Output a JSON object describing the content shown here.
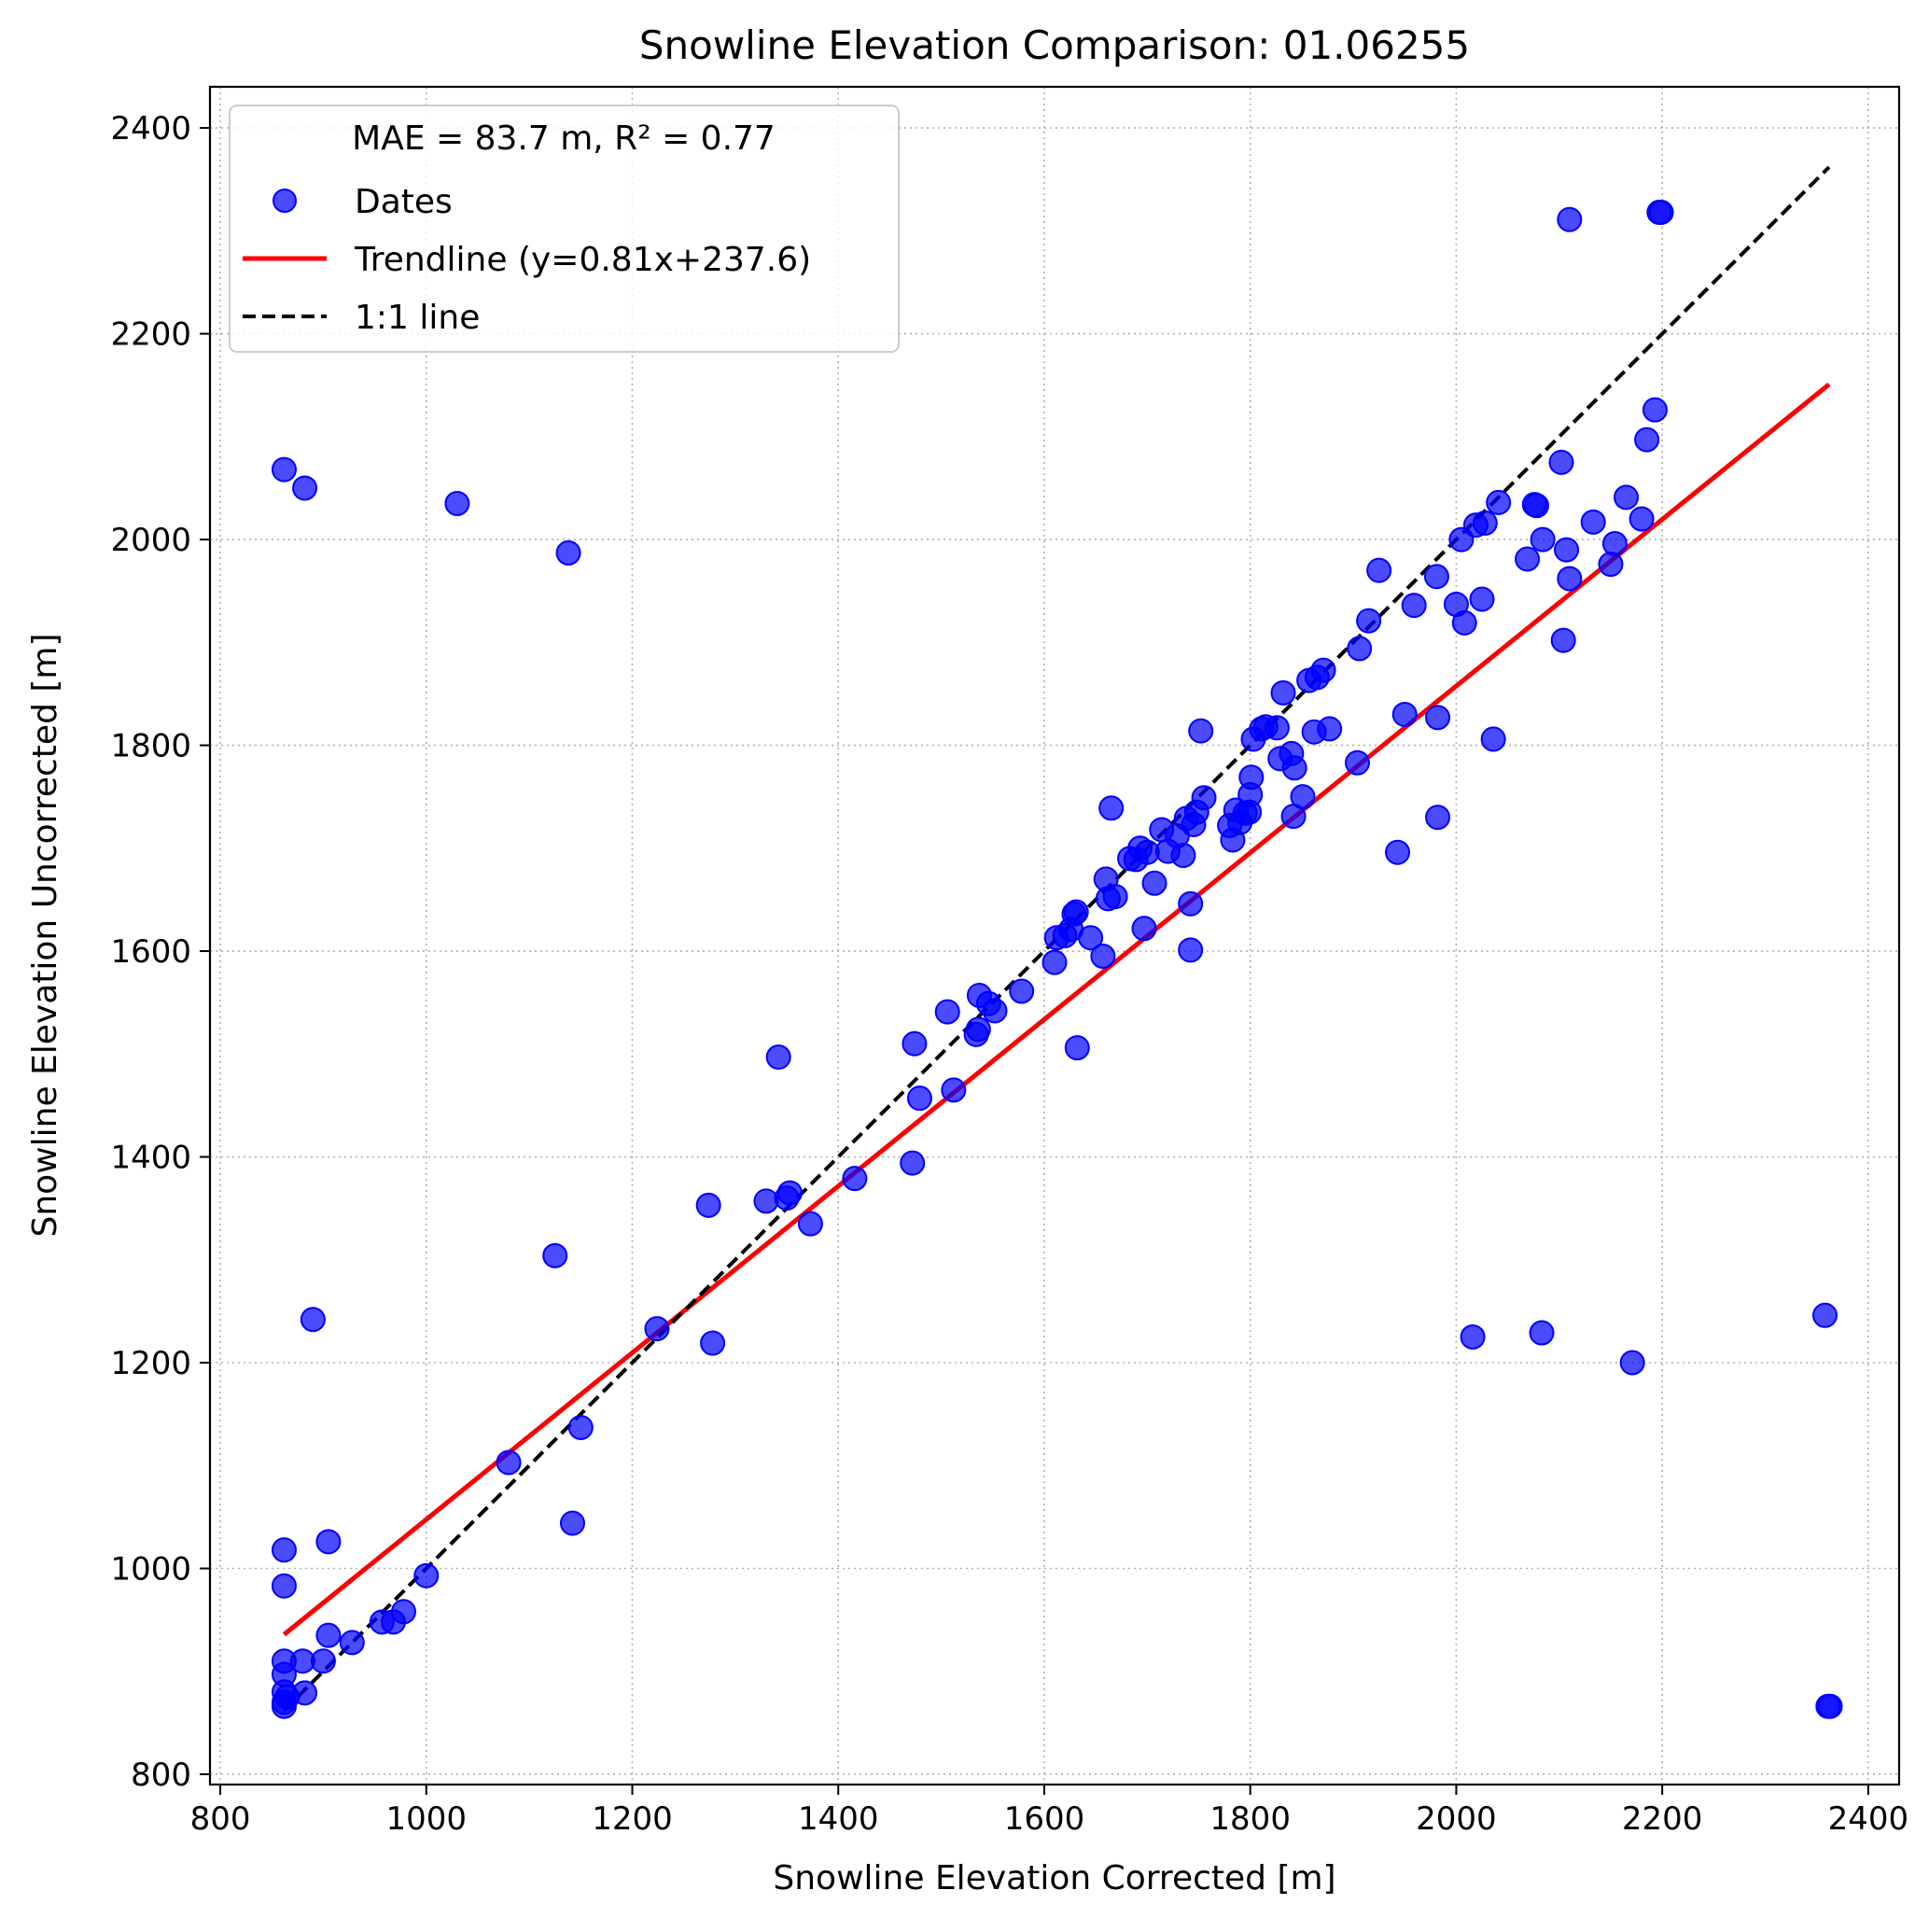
{
  "chart_data": {
    "type": "scatter",
    "title": "Snowline Elevation Comparison: 01.06255",
    "xlabel": "Snowline Elevation Corrected [m]",
    "ylabel": "Snowline Elevation Uncorrected [m]",
    "xlim": [
      790,
      2430
    ],
    "ylim": [
      790,
      2440
    ],
    "xticks": [
      800,
      1000,
      1200,
      1400,
      1600,
      1800,
      2000,
      2200,
      2400
    ],
    "yticks": [
      800,
      1000,
      1200,
      1400,
      1600,
      1800,
      2000,
      2200,
      2400
    ],
    "grid": true,
    "legend": {
      "position": "top-left",
      "title": "MAE = 83.7 m,  R² = 0.77",
      "entries": [
        "Dates",
        "Trendline (y=0.81x+237.6)",
        "1:1 line"
      ]
    },
    "colors": {
      "points": "#0000ff",
      "trendline": "#ff0000",
      "one_to_one": "#000000",
      "grid": "#b0b0b0"
    },
    "trendline": {
      "slope": 0.81,
      "intercept": 237.6,
      "x_range": [
        862,
        2362
      ]
    },
    "one_to_one": {
      "x_range": [
        862,
        2362
      ]
    },
    "series": [
      {
        "name": "Dates",
        "points": [
          [
            862,
            2068
          ],
          [
            882,
            2050
          ],
          [
            1030,
            2035
          ],
          [
            1138,
            1987
          ],
          [
            862,
            1018
          ],
          [
            862,
            983
          ],
          [
            905,
            1026
          ],
          [
            862,
            910
          ],
          [
            862,
            897
          ],
          [
            880,
            910
          ],
          [
            862,
            880
          ],
          [
            862,
            870
          ],
          [
            862,
            866
          ],
          [
            865,
            875
          ],
          [
            882,
            879
          ],
          [
            900,
            910
          ],
          [
            905,
            935
          ],
          [
            928,
            928
          ],
          [
            957,
            948
          ],
          [
            968,
            948
          ],
          [
            978,
            958
          ],
          [
            1000,
            993
          ],
          [
            890,
            1242
          ],
          [
            1080,
            1103
          ],
          [
            1125,
            1304
          ],
          [
            1150,
            1137
          ],
          [
            1142,
            1044
          ],
          [
            1224,
            1233
          ],
          [
            1274,
            1353
          ],
          [
            1278,
            1219
          ],
          [
            1330,
            1357
          ],
          [
            1342,
            1497
          ],
          [
            1350,
            1360
          ],
          [
            1353,
            1365
          ],
          [
            1373,
            1335
          ],
          [
            1416,
            1379
          ],
          [
            1472,
            1394
          ],
          [
            1474,
            1510
          ],
          [
            1479,
            1457
          ],
          [
            1506,
            1541
          ],
          [
            1512,
            1465
          ],
          [
            1534,
            1519
          ],
          [
            1536,
            1524
          ],
          [
            1537,
            1557
          ],
          [
            1546,
            1549
          ],
          [
            1552,
            1542
          ],
          [
            1578,
            1561
          ],
          [
            1610,
            1589
          ],
          [
            1612,
            1613
          ],
          [
            1620,
            1615
          ],
          [
            1626,
            1621
          ],
          [
            1629,
            1636
          ],
          [
            1631,
            1638
          ],
          [
            1632,
            1506
          ],
          [
            1645,
            1613
          ],
          [
            1657,
            1595
          ],
          [
            1660,
            1670
          ],
          [
            1662,
            1651
          ],
          [
            1665,
            1739
          ],
          [
            1669,
            1653
          ],
          [
            1683,
            1690
          ],
          [
            1689,
            1689
          ],
          [
            1693,
            1700
          ],
          [
            1697,
            1622
          ],
          [
            1700,
            1696
          ],
          [
            1707,
            1666
          ],
          [
            1714,
            1718
          ],
          [
            1720,
            1697
          ],
          [
            1729,
            1712
          ],
          [
            1735,
            1693
          ],
          [
            1738,
            1729
          ],
          [
            1742,
            1646
          ],
          [
            1742,
            1601
          ],
          [
            1745,
            1723
          ],
          [
            1748,
            1735
          ],
          [
            1752,
            1814
          ],
          [
            1755,
            1749
          ],
          [
            1780,
            1722
          ],
          [
            1783,
            1708
          ],
          [
            1786,
            1737
          ],
          [
            1790,
            1725
          ],
          [
            1795,
            1734
          ],
          [
            1799,
            1735
          ],
          [
            1800,
            1752
          ],
          [
            1801,
            1769
          ],
          [
            1803,
            1806
          ],
          [
            1811,
            1816
          ],
          [
            1815,
            1818
          ],
          [
            1826,
            1817
          ],
          [
            1829,
            1787
          ],
          [
            1832,
            1851
          ],
          [
            1840,
            1792
          ],
          [
            1842,
            1731
          ],
          [
            1843,
            1778
          ],
          [
            1851,
            1750
          ],
          [
            1857,
            1863
          ],
          [
            1862,
            1813
          ],
          [
            1865,
            1866
          ],
          [
            1871,
            1873
          ],
          [
            1877,
            1816
          ],
          [
            1904,
            1783
          ],
          [
            1906,
            1894
          ],
          [
            1915,
            1921
          ],
          [
            1925,
            1970
          ],
          [
            1943,
            1696
          ],
          [
            1950,
            1830
          ],
          [
            1959,
            1936
          ],
          [
            1981,
            1964
          ],
          [
            1982,
            1730
          ],
          [
            1982,
            1827
          ],
          [
            2000,
            1937
          ],
          [
            2005,
            2000
          ],
          [
            2008,
            1919
          ],
          [
            2016,
            1225
          ],
          [
            2019,
            2014
          ],
          [
            2025,
            1942
          ],
          [
            2028,
            2016
          ],
          [
            2036,
            1806
          ],
          [
            2041,
            2036
          ],
          [
            2069,
            1981
          ],
          [
            2076,
            2034
          ],
          [
            2078,
            2033
          ],
          [
            2083,
            1229
          ],
          [
            2084,
            2000
          ],
          [
            2102,
            2075
          ],
          [
            2104,
            1902
          ],
          [
            2107,
            1990
          ],
          [
            2110,
            1962
          ],
          [
            2110,
            2311
          ],
          [
            2133,
            2017
          ],
          [
            2150,
            1976
          ],
          [
            2154,
            1996
          ],
          [
            2165,
            2041
          ],
          [
            2171,
            1200
          ],
          [
            2180,
            2020
          ],
          [
            2185,
            2097
          ],
          [
            2193,
            2126
          ],
          [
            2197,
            2318
          ],
          [
            2199,
            2318
          ],
          [
            2358,
            1246
          ],
          [
            2361,
            866
          ],
          [
            2363,
            866
          ]
        ]
      }
    ]
  }
}
